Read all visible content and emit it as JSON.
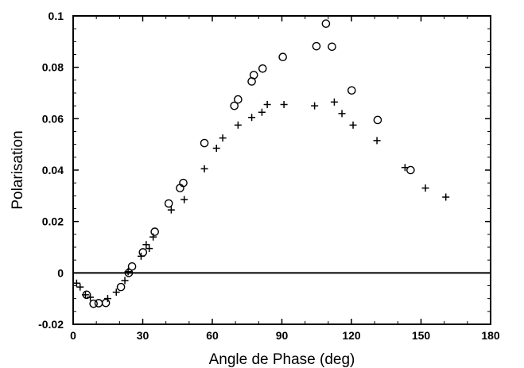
{
  "chart_data": {
    "type": "scatter",
    "title": "",
    "xlabel": "Angle de Phase (deg)",
    "ylabel": "Polarisation",
    "xlim": [
      0,
      180
    ],
    "ylim": [
      -0.02,
      0.1
    ],
    "xticks": [
      0,
      30,
      60,
      90,
      120,
      150,
      180
    ],
    "xtick_labels": [
      "0",
      "30",
      "60",
      "90",
      "120",
      "150",
      "180"
    ],
    "yticks": [
      -0.02,
      0,
      0.02,
      0.04,
      0.06,
      0.08,
      0.1
    ],
    "ytick_labels": [
      "-0.02",
      "0",
      "0.02",
      "0.04",
      "0.06",
      "0.08",
      "0.1"
    ],
    "grid": false,
    "reference_line_y": 0,
    "series": [
      {
        "marker": "circle",
        "points": [
          [
            5.8,
            -0.0085
          ],
          [
            8.8,
            -0.012
          ],
          [
            11.0,
            -0.0118
          ],
          [
            14.1,
            -0.0117
          ],
          [
            20.6,
            -0.0055
          ],
          [
            24.0,
            0.0
          ],
          [
            25.4,
            0.0025
          ],
          [
            30.1,
            0.008
          ],
          [
            35.2,
            0.016
          ],
          [
            41.2,
            0.027
          ],
          [
            46.1,
            0.033
          ],
          [
            47.5,
            0.035
          ],
          [
            56.6,
            0.0505
          ],
          [
            69.5,
            0.065
          ],
          [
            71.1,
            0.0675
          ],
          [
            77.0,
            0.0745
          ],
          [
            77.9,
            0.077
          ],
          [
            81.7,
            0.0795
          ],
          [
            90.4,
            0.084
          ],
          [
            104.9,
            0.0882
          ],
          [
            109.0,
            0.097
          ],
          [
            111.6,
            0.088
          ],
          [
            120.1,
            0.071
          ],
          [
            131.3,
            0.0595
          ],
          [
            145.5,
            0.04
          ]
        ]
      },
      {
        "marker": "plus",
        "points": [
          [
            1.5,
            -0.004
          ],
          [
            3.0,
            -0.0055
          ],
          [
            5.3,
            -0.0085
          ],
          [
            7.4,
            -0.0095
          ],
          [
            14.9,
            -0.01
          ],
          [
            18.6,
            -0.0075
          ],
          [
            22.3,
            -0.003
          ],
          [
            23.7,
            0.0005
          ],
          [
            29.3,
            0.0065
          ],
          [
            31.5,
            0.011
          ],
          [
            32.8,
            0.0095
          ],
          [
            34.5,
            0.014
          ],
          [
            42.3,
            0.0245
          ],
          [
            47.9,
            0.0285
          ],
          [
            56.6,
            0.0405
          ],
          [
            61.8,
            0.0485
          ],
          [
            64.5,
            0.0525
          ],
          [
            71.1,
            0.0575
          ],
          [
            77.0,
            0.0605
          ],
          [
            81.4,
            0.0625
          ],
          [
            83.7,
            0.0655
          ],
          [
            90.9,
            0.0655
          ],
          [
            104.1,
            0.065
          ],
          [
            112.6,
            0.0665
          ],
          [
            115.9,
            0.062
          ],
          [
            120.7,
            0.0575
          ],
          [
            131.0,
            0.0515
          ],
          [
            143.1,
            0.041
          ],
          [
            151.9,
            0.033
          ],
          [
            160.7,
            0.0295
          ]
        ]
      }
    ]
  }
}
